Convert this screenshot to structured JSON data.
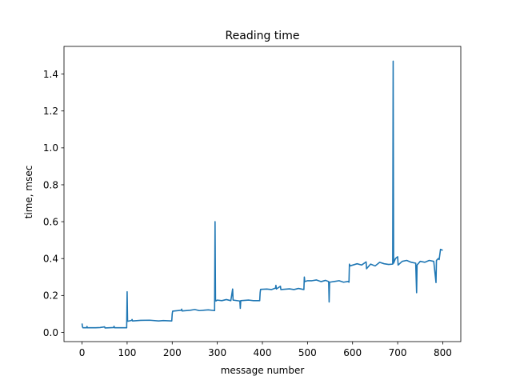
{
  "chart_data": {
    "type": "line",
    "title": "Reading time",
    "xlabel": "message number",
    "ylabel": "time, msec",
    "xlim": [
      -40,
      840
    ],
    "ylim": [
      -0.05,
      1.55
    ],
    "x_ticks": [
      0,
      100,
      200,
      300,
      400,
      500,
      600,
      700,
      800
    ],
    "x_tick_labels": [
      "0",
      "100",
      "200",
      "300",
      "400",
      "500",
      "600",
      "700",
      "800"
    ],
    "y_ticks": [
      0.0,
      0.2,
      0.4,
      0.6,
      0.8,
      1.0,
      1.2,
      1.4
    ],
    "y_tick_labels": [
      "0.0",
      "0.2",
      "0.4",
      "0.6",
      "0.8",
      "1.0",
      "1.2",
      "1.4"
    ],
    "grid": false,
    "legend": "none",
    "series": [
      {
        "color": "#1f77b4",
        "points": [
          [
            0,
            0.048
          ],
          [
            1,
            0.03
          ],
          [
            2,
            0.025
          ],
          [
            10,
            0.025
          ],
          [
            11,
            0.032
          ],
          [
            12,
            0.025
          ],
          [
            30,
            0.025
          ],
          [
            40,
            0.026
          ],
          [
            50,
            0.03
          ],
          [
            51,
            0.024
          ],
          [
            70,
            0.026
          ],
          [
            71,
            0.033
          ],
          [
            72,
            0.025
          ],
          [
            90,
            0.025
          ],
          [
            99,
            0.025
          ],
          [
            100,
            0.22
          ],
          [
            101,
            0.06
          ],
          [
            110,
            0.065
          ],
          [
            111,
            0.07
          ],
          [
            112,
            0.062
          ],
          [
            130,
            0.065
          ],
          [
            150,
            0.066
          ],
          [
            170,
            0.062
          ],
          [
            180,
            0.064
          ],
          [
            199,
            0.062
          ],
          [
            200,
            0.1
          ],
          [
            201,
            0.115
          ],
          [
            220,
            0.12
          ],
          [
            221,
            0.126
          ],
          [
            222,
            0.116
          ],
          [
            240,
            0.12
          ],
          [
            250,
            0.124
          ],
          [
            260,
            0.118
          ],
          [
            280,
            0.122
          ],
          [
            294,
            0.118
          ],
          [
            295,
            0.6
          ],
          [
            296,
            0.18
          ],
          [
            297,
            0.17
          ],
          [
            300,
            0.175
          ],
          [
            310,
            0.172
          ],
          [
            320,
            0.178
          ],
          [
            330,
            0.172
          ],
          [
            334,
            0.235
          ],
          [
            335,
            0.175
          ],
          [
            350,
            0.17
          ],
          [
            351,
            0.13
          ],
          [
            352,
            0.172
          ],
          [
            370,
            0.175
          ],
          [
            380,
            0.172
          ],
          [
            394,
            0.172
          ],
          [
            395,
            0.215
          ],
          [
            396,
            0.233
          ],
          [
            410,
            0.235
          ],
          [
            420,
            0.232
          ],
          [
            429,
            0.24
          ],
          [
            430,
            0.255
          ],
          [
            431,
            0.235
          ],
          [
            440,
            0.25
          ],
          [
            441,
            0.232
          ],
          [
            460,
            0.236
          ],
          [
            470,
            0.232
          ],
          [
            480,
            0.238
          ],
          [
            492,
            0.232
          ],
          [
            493,
            0.3
          ],
          [
            494,
            0.275
          ],
          [
            500,
            0.28
          ],
          [
            510,
            0.28
          ],
          [
            520,
            0.284
          ],
          [
            530,
            0.275
          ],
          [
            540,
            0.282
          ],
          [
            547,
            0.275
          ],
          [
            548,
            0.165
          ],
          [
            549,
            0.272
          ],
          [
            560,
            0.276
          ],
          [
            570,
            0.28
          ],
          [
            580,
            0.272
          ],
          [
            590,
            0.276
          ],
          [
            592,
            0.272
          ],
          [
            593,
            0.37
          ],
          [
            594,
            0.36
          ],
          [
            610,
            0.372
          ],
          [
            620,
            0.365
          ],
          [
            630,
            0.382
          ],
          [
            631,
            0.345
          ],
          [
            640,
            0.37
          ],
          [
            650,
            0.36
          ],
          [
            660,
            0.38
          ],
          [
            670,
            0.372
          ],
          [
            680,
            0.368
          ],
          [
            689,
            0.37
          ],
          [
            690,
            1.47
          ],
          [
            691,
            0.375
          ],
          [
            695,
            0.4
          ],
          [
            700,
            0.41
          ],
          [
            701,
            0.365
          ],
          [
            710,
            0.385
          ],
          [
            720,
            0.39
          ],
          [
            730,
            0.38
          ],
          [
            740,
            0.375
          ],
          [
            742,
            0.215
          ],
          [
            743,
            0.365
          ],
          [
            750,
            0.385
          ],
          [
            760,
            0.38
          ],
          [
            770,
            0.39
          ],
          [
            780,
            0.385
          ],
          [
            785,
            0.27
          ],
          [
            786,
            0.39
          ],
          [
            790,
            0.4
          ],
          [
            792,
            0.395
          ],
          [
            795,
            0.45
          ],
          [
            800,
            0.445
          ]
        ]
      }
    ]
  }
}
